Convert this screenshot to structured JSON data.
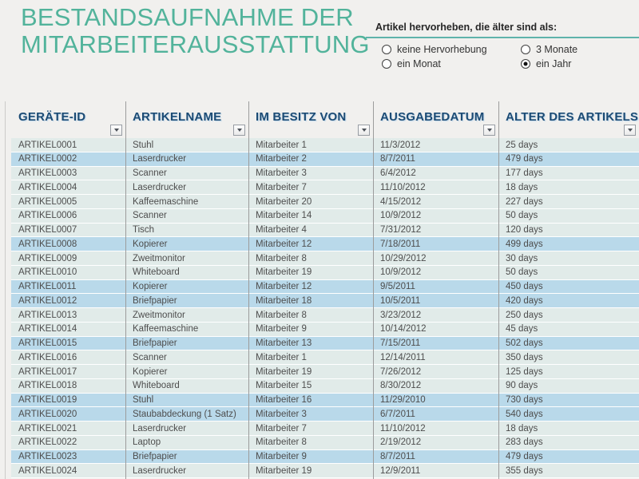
{
  "title": {
    "line1": "BESTANDSAUFNAHME DER",
    "line2": "MITARBEITERAUSSTATTUNG"
  },
  "highlight_panel": {
    "label": "Artikel hervorheben, die älter sind als:",
    "options": [
      {
        "label": "keine Hervorhebung",
        "selected": false
      },
      {
        "label": "3 Monate",
        "selected": false
      },
      {
        "label": "ein Monat",
        "selected": false
      },
      {
        "label": "ein Jahr",
        "selected": true
      }
    ]
  },
  "table": {
    "columns": [
      "GERÄTE-ID",
      "ARTIKELNAME",
      "IM BESITZ VON",
      "AUSGABEDATUM",
      "ALTER DES ARTIKELS"
    ],
    "rows": [
      {
        "id": "ARTIKEL0001",
        "name": "Stuhl",
        "owner": "Mitarbeiter 1",
        "date": "11/3/2012",
        "age": "25 days",
        "highlighted": false
      },
      {
        "id": "ARTIKEL0002",
        "name": "Laserdrucker",
        "owner": "Mitarbeiter 2",
        "date": "8/7/2011",
        "age": "479 days",
        "highlighted": true
      },
      {
        "id": "ARTIKEL0003",
        "name": "Scanner",
        "owner": "Mitarbeiter 3",
        "date": "6/4/2012",
        "age": "177 days",
        "highlighted": false
      },
      {
        "id": "ARTIKEL0004",
        "name": "Laserdrucker",
        "owner": "Mitarbeiter 7",
        "date": "11/10/2012",
        "age": "18 days",
        "highlighted": false
      },
      {
        "id": "ARTIKEL0005",
        "name": "Kaffeemaschine",
        "owner": "Mitarbeiter 20",
        "date": "4/15/2012",
        "age": "227 days",
        "highlighted": false
      },
      {
        "id": "ARTIKEL0006",
        "name": "Scanner",
        "owner": "Mitarbeiter 14",
        "date": "10/9/2012",
        "age": "50 days",
        "highlighted": false
      },
      {
        "id": "ARTIKEL0007",
        "name": "Tisch",
        "owner": "Mitarbeiter 4",
        "date": "7/31/2012",
        "age": "120 days",
        "highlighted": false
      },
      {
        "id": "ARTIKEL0008",
        "name": "Kopierer",
        "owner": "Mitarbeiter 12",
        "date": "7/18/2011",
        "age": "499 days",
        "highlighted": true
      },
      {
        "id": "ARTIKEL0009",
        "name": "Zweitmonitor",
        "owner": "Mitarbeiter 8",
        "date": "10/29/2012",
        "age": "30 days",
        "highlighted": false
      },
      {
        "id": "ARTIKEL0010",
        "name": "Whiteboard",
        "owner": "Mitarbeiter 19",
        "date": "10/9/2012",
        "age": "50 days",
        "highlighted": false
      },
      {
        "id": "ARTIKEL0011",
        "name": "Kopierer",
        "owner": "Mitarbeiter 12",
        "date": "9/5/2011",
        "age": "450 days",
        "highlighted": true
      },
      {
        "id": "ARTIKEL0012",
        "name": "Briefpapier",
        "owner": "Mitarbeiter 18",
        "date": "10/5/2011",
        "age": "420 days",
        "highlighted": true
      },
      {
        "id": "ARTIKEL0013",
        "name": "Zweitmonitor",
        "owner": "Mitarbeiter 8",
        "date": "3/23/2012",
        "age": "250 days",
        "highlighted": false
      },
      {
        "id": "ARTIKEL0014",
        "name": "Kaffeemaschine",
        "owner": "Mitarbeiter 9",
        "date": "10/14/2012",
        "age": "45 days",
        "highlighted": false
      },
      {
        "id": "ARTIKEL0015",
        "name": "Briefpapier",
        "owner": "Mitarbeiter 13",
        "date": "7/15/2011",
        "age": "502 days",
        "highlighted": true
      },
      {
        "id": "ARTIKEL0016",
        "name": "Scanner",
        "owner": "Mitarbeiter 1",
        "date": "12/14/2011",
        "age": "350 days",
        "highlighted": false
      },
      {
        "id": "ARTIKEL0017",
        "name": "Kopierer",
        "owner": "Mitarbeiter 19",
        "date": "7/26/2012",
        "age": "125 days",
        "highlighted": false
      },
      {
        "id": "ARTIKEL0018",
        "name": "Whiteboard",
        "owner": "Mitarbeiter 15",
        "date": "8/30/2012",
        "age": "90 days",
        "highlighted": false
      },
      {
        "id": "ARTIKEL0019",
        "name": "Stuhl",
        "owner": "Mitarbeiter 16",
        "date": "11/29/2010",
        "age": "730 days",
        "highlighted": true
      },
      {
        "id": "ARTIKEL0020",
        "name": "Staubabdeckung (1 Satz)",
        "owner": "Mitarbeiter 3",
        "date": "6/7/2011",
        "age": "540 days",
        "highlighted": true
      },
      {
        "id": "ARTIKEL0021",
        "name": "Laserdrucker",
        "owner": "Mitarbeiter 7",
        "date": "11/10/2012",
        "age": "18 days",
        "highlighted": false
      },
      {
        "id": "ARTIKEL0022",
        "name": "Laptop",
        "owner": "Mitarbeiter 8",
        "date": "2/19/2012",
        "age": "283 days",
        "highlighted": false
      },
      {
        "id": "ARTIKEL0023",
        "name": "Briefpapier",
        "owner": "Mitarbeiter 9",
        "date": "8/7/2011",
        "age": "479 days",
        "highlighted": true
      },
      {
        "id": "ARTIKEL0024",
        "name": "Laserdrucker",
        "owner": "Mitarbeiter 19",
        "date": "12/9/2011",
        "age": "355 days",
        "highlighted": false
      }
    ]
  },
  "colors": {
    "title_teal": "#52b39b",
    "panel_rule_teal": "#5fb3ab",
    "header_text_blue": "#1c4b74",
    "row_normal": "#e1ebe9",
    "row_highlighted": "#b9d9ea",
    "page_background": "#f1f0ee"
  }
}
